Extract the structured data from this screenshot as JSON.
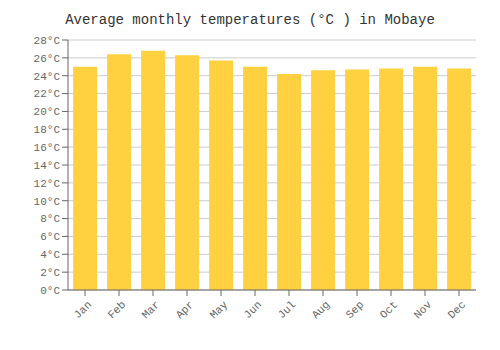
{
  "chart_data": {
    "type": "bar",
    "title": "Average monthly temperatures (°C ) in Mobaye",
    "categories": [
      "Jan",
      "Feb",
      "Mar",
      "Apr",
      "May",
      "Jun",
      "Jul",
      "Aug",
      "Sep",
      "Oct",
      "Nov",
      "Dec"
    ],
    "values": [
      25.0,
      26.4,
      26.8,
      26.3,
      25.7,
      25.0,
      24.2,
      24.6,
      24.7,
      24.8,
      25.0,
      24.8
    ],
    "color": "#FFD040",
    "ylim": [
      0,
      28
    ],
    "yticks": [
      {
        "value": 0,
        "label": "0°C"
      },
      {
        "value": 2,
        "label": "2°C"
      },
      {
        "value": 4,
        "label": "4°C"
      },
      {
        "value": 6,
        "label": "6°C"
      },
      {
        "value": 8,
        "label": "8°C"
      },
      {
        "value": 10,
        "label": "10°C"
      },
      {
        "value": 12,
        "label": "12°C"
      },
      {
        "value": 14,
        "label": "14°C"
      },
      {
        "value": 16,
        "label": "16°C"
      },
      {
        "value": 18,
        "label": "18°C"
      },
      {
        "value": 20,
        "label": "20°C"
      },
      {
        "value": 22,
        "label": "22°C"
      },
      {
        "value": 24,
        "label": "24°C"
      },
      {
        "value": 26,
        "label": "26°C"
      },
      {
        "value": 28,
        "label": "28°C"
      }
    ],
    "grid": true
  }
}
